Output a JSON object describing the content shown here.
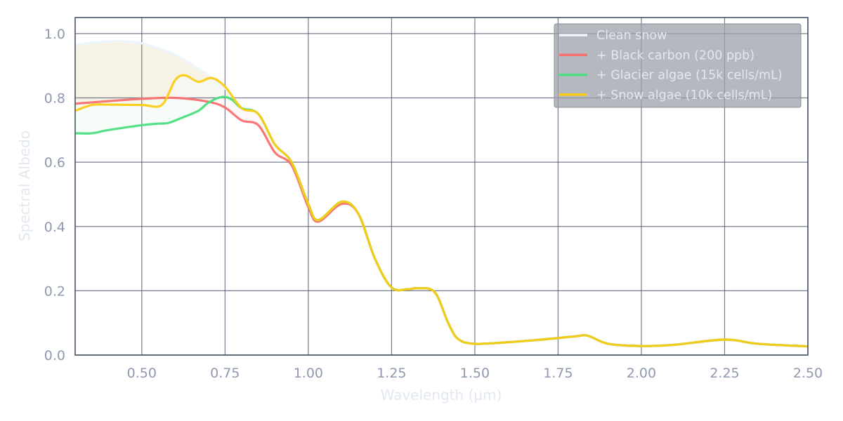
{
  "chart_data": {
    "type": "line",
    "title": "",
    "xlabel": "Wavelength (µm)",
    "ylabel": "Spectral Albedo",
    "xlim": [
      0.3,
      2.5
    ],
    "ylim": [
      0,
      1.05
    ],
    "xticks": [
      "0.50",
      "0.75",
      "1.00",
      "1.25",
      "1.50",
      "1.75",
      "2.00",
      "2.25",
      "2.50"
    ],
    "yticks": [
      "0.0",
      "0.2",
      "0.4",
      "0.6",
      "0.8",
      "1.0"
    ],
    "grid": true,
    "legend_position": "top-right",
    "series": [
      {
        "name": "Clean snow",
        "color": "#eef6fd",
        "x": [
          0.3,
          0.35,
          0.4,
          0.45,
          0.5,
          0.55,
          0.6,
          0.65,
          0.7,
          0.75,
          0.8
        ],
        "y": [
          0.965,
          0.972,
          0.976,
          0.976,
          0.97,
          0.955,
          0.935,
          0.905,
          0.87,
          0.83,
          0.77
        ]
      },
      {
        "name": "+ Black carbon (200 ppb)",
        "color": "#f87171",
        "x": [
          0.3,
          0.4,
          0.5,
          0.6,
          0.7,
          0.75,
          0.8,
          0.85,
          0.9,
          0.95,
          1.0,
          1.03,
          1.1
        ],
        "y": [
          0.782,
          0.79,
          0.797,
          0.8,
          0.788,
          0.77,
          0.73,
          0.715,
          0.63,
          0.59,
          0.46,
          0.415,
          0.47
        ]
      },
      {
        "name": "+ Glacier algae (15k cells/mL)",
        "color": "#4ade80",
        "x": [
          0.3,
          0.35,
          0.4,
          0.5,
          0.55,
          0.58,
          0.62,
          0.67,
          0.7,
          0.74,
          0.77,
          0.8
        ],
        "y": [
          0.69,
          0.69,
          0.7,
          0.715,
          0.72,
          0.722,
          0.738,
          0.76,
          0.785,
          0.803,
          0.795,
          0.768
        ]
      },
      {
        "name": "+ Snow algae (10k cells/mL)",
        "color": "#facc15",
        "x": [
          0.3,
          0.35,
          0.4,
          0.5,
          0.56,
          0.6,
          0.63,
          0.67,
          0.71,
          0.75,
          0.8
        ],
        "y": [
          0.76,
          0.778,
          0.779,
          0.778,
          0.778,
          0.855,
          0.87,
          0.85,
          0.862,
          0.835,
          0.768
        ]
      }
    ],
    "shared_tail": {
      "x": [
        0.85,
        0.9,
        0.95,
        1.0,
        1.03,
        1.1,
        1.15,
        1.2,
        1.25,
        1.3,
        1.33,
        1.38,
        1.42,
        1.45,
        1.5,
        1.6,
        1.7,
        1.8,
        1.84,
        1.9,
        2.0,
        2.1,
        2.25,
        2.35,
        2.5
      ],
      "y": [
        0.75,
        0.655,
        0.6,
        0.47,
        0.42,
        0.477,
        0.44,
        0.3,
        0.21,
        0.205,
        0.208,
        0.195,
        0.1,
        0.05,
        0.035,
        0.04,
        0.048,
        0.058,
        0.06,
        0.035,
        0.028,
        0.032,
        0.048,
        0.035,
        0.027
      ]
    }
  }
}
